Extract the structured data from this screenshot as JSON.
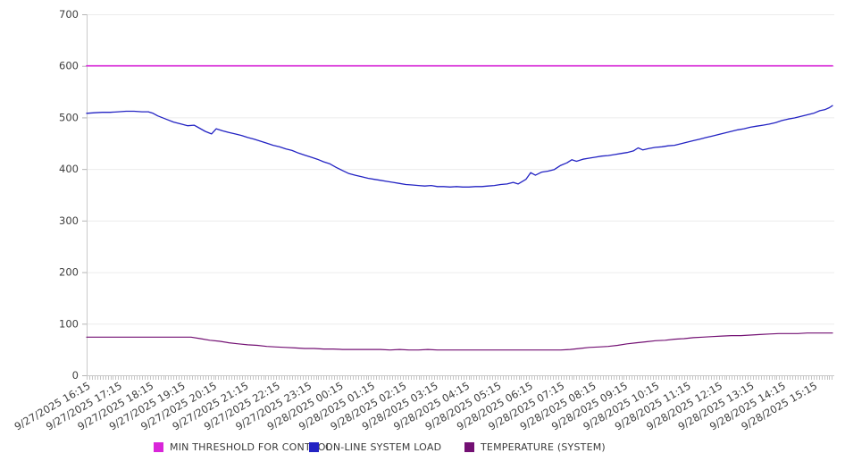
{
  "chart_data": {
    "type": "line",
    "title": "",
    "xlabel": "",
    "ylabel": "",
    "ylim": [
      0,
      700
    ],
    "y_ticks": [
      0,
      100,
      200,
      300,
      400,
      500,
      600,
      700
    ],
    "grid": "horizontal",
    "legend_position": "bottom-center",
    "x_hours_span": 23.6,
    "minor_tick_minutes": 5,
    "x_tick_labels": [
      "9/27/2025 16:15",
      "9/27/2025 17:15",
      "9/27/2025 18:15",
      "9/27/2025 19:15",
      "9/27/2025 20:15",
      "9/27/2025 21:15",
      "9/27/2025 22:15",
      "9/27/2025 23:15",
      "9/28/2025 00:15",
      "9/28/2025 01:15",
      "9/28/2025 02:15",
      "9/28/2025 03:15",
      "9/28/2025 04:15",
      "9/28/2025 05:15",
      "9/28/2025 06:15",
      "9/28/2025 07:15",
      "9/28/2025 08:15",
      "9/28/2025 09:15",
      "9/28/2025 10:15",
      "9/28/2025 11:15",
      "9/28/2025 12:15",
      "9/28/2025 13:15",
      "9/28/2025 14:15",
      "9/28/2025 15:15"
    ],
    "series": [
      {
        "name": "MIN THRESHOLD FOR CONTROL",
        "color": "#D926D9",
        "width": 1.7,
        "points": [
          [
            0,
            600
          ],
          [
            23.6,
            600
          ]
        ]
      },
      {
        "name": "ON-LINE SYSTEM LOAD",
        "color": "#2323C3",
        "width": 1.3,
        "points": [
          [
            0,
            508
          ],
          [
            0.25,
            509
          ],
          [
            0.5,
            510
          ],
          [
            0.75,
            510
          ],
          [
            1,
            511
          ],
          [
            1.25,
            512
          ],
          [
            1.5,
            512
          ],
          [
            1.75,
            511
          ],
          [
            1.95,
            511
          ],
          [
            2.1,
            508
          ],
          [
            2.25,
            503
          ],
          [
            2.5,
            497
          ],
          [
            2.75,
            491
          ],
          [
            3,
            487
          ],
          [
            3.2,
            484
          ],
          [
            3.4,
            485
          ],
          [
            3.55,
            480
          ],
          [
            3.75,
            473
          ],
          [
            3.95,
            468
          ],
          [
            4.1,
            478
          ],
          [
            4.3,
            474
          ],
          [
            4.5,
            471
          ],
          [
            4.7,
            468
          ],
          [
            4.9,
            465
          ],
          [
            5.1,
            461
          ],
          [
            5.3,
            458
          ],
          [
            5.5,
            454
          ],
          [
            5.7,
            450
          ],
          [
            5.9,
            446
          ],
          [
            6.1,
            443
          ],
          [
            6.3,
            439
          ],
          [
            6.5,
            436
          ],
          [
            6.7,
            431
          ],
          [
            6.9,
            427
          ],
          [
            7.1,
            423
          ],
          [
            7.3,
            419
          ],
          [
            7.5,
            414
          ],
          [
            7.7,
            410
          ],
          [
            7.9,
            403
          ],
          [
            8.1,
            397
          ],
          [
            8.3,
            391
          ],
          [
            8.5,
            388
          ],
          [
            8.7,
            385
          ],
          [
            8.9,
            382
          ],
          [
            9.1,
            380
          ],
          [
            9.3,
            378
          ],
          [
            9.5,
            376
          ],
          [
            9.7,
            374
          ],
          [
            9.9,
            372
          ],
          [
            10.1,
            370
          ],
          [
            10.3,
            369
          ],
          [
            10.5,
            368
          ],
          [
            10.7,
            367
          ],
          [
            10.9,
            368
          ],
          [
            11.1,
            366
          ],
          [
            11.3,
            366
          ],
          [
            11.5,
            365
          ],
          [
            11.7,
            366
          ],
          [
            11.9,
            365
          ],
          [
            12.1,
            365
          ],
          [
            12.3,
            366
          ],
          [
            12.5,
            366
          ],
          [
            12.7,
            367
          ],
          [
            12.9,
            368
          ],
          [
            13.1,
            370
          ],
          [
            13.3,
            371
          ],
          [
            13.5,
            374
          ],
          [
            13.65,
            371
          ],
          [
            13.9,
            380
          ],
          [
            14.05,
            393
          ],
          [
            14.2,
            388
          ],
          [
            14.4,
            394
          ],
          [
            14.6,
            396
          ],
          [
            14.8,
            399
          ],
          [
            15,
            407
          ],
          [
            15.2,
            412
          ],
          [
            15.35,
            418
          ],
          [
            15.5,
            415
          ],
          [
            15.7,
            419
          ],
          [
            15.9,
            421
          ],
          [
            16.1,
            423
          ],
          [
            16.3,
            425
          ],
          [
            16.5,
            426
          ],
          [
            16.7,
            428
          ],
          [
            16.9,
            430
          ],
          [
            17.1,
            432
          ],
          [
            17.3,
            435
          ],
          [
            17.45,
            441
          ],
          [
            17.6,
            437
          ],
          [
            17.8,
            440
          ],
          [
            18,
            442
          ],
          [
            18.2,
            443
          ],
          [
            18.4,
            445
          ],
          [
            18.6,
            446
          ],
          [
            18.8,
            449
          ],
          [
            19,
            452
          ],
          [
            19.2,
            455
          ],
          [
            19.4,
            458
          ],
          [
            19.6,
            461
          ],
          [
            19.8,
            464
          ],
          [
            20,
            467
          ],
          [
            20.2,
            470
          ],
          [
            20.4,
            473
          ],
          [
            20.6,
            476
          ],
          [
            20.8,
            478
          ],
          [
            21,
            481
          ],
          [
            21.2,
            483
          ],
          [
            21.4,
            485
          ],
          [
            21.6,
            487
          ],
          [
            21.8,
            490
          ],
          [
            22,
            494
          ],
          [
            22.2,
            497
          ],
          [
            22.4,
            499
          ],
          [
            22.6,
            502
          ],
          [
            22.8,
            505
          ],
          [
            23,
            508
          ],
          [
            23.2,
            513
          ],
          [
            23.35,
            515
          ],
          [
            23.5,
            519
          ],
          [
            23.6,
            523
          ]
        ]
      },
      {
        "name": "TEMPERATURE (SYSTEM)",
        "color": "#731073",
        "width": 1.2,
        "points": [
          [
            0,
            74
          ],
          [
            0.5,
            74
          ],
          [
            1,
            74
          ],
          [
            1.5,
            74
          ],
          [
            2,
            74
          ],
          [
            2.5,
            74
          ],
          [
            3,
            74
          ],
          [
            3.3,
            74
          ],
          [
            3.6,
            71
          ],
          [
            3.9,
            68
          ],
          [
            4.2,
            66
          ],
          [
            4.5,
            63
          ],
          [
            4.8,
            61
          ],
          [
            5.1,
            59
          ],
          [
            5.4,
            58
          ],
          [
            5.7,
            56
          ],
          [
            6,
            55
          ],
          [
            6.3,
            54
          ],
          [
            6.6,
            53
          ],
          [
            6.9,
            52
          ],
          [
            7.2,
            52
          ],
          [
            7.5,
            51
          ],
          [
            7.8,
            51
          ],
          [
            8.1,
            50
          ],
          [
            8.4,
            50
          ],
          [
            8.7,
            50
          ],
          [
            9,
            50
          ],
          [
            9.3,
            50
          ],
          [
            9.6,
            49
          ],
          [
            9.9,
            50
          ],
          [
            10.2,
            49
          ],
          [
            10.5,
            49
          ],
          [
            10.8,
            50
          ],
          [
            11.1,
            49
          ],
          [
            11.4,
            49
          ],
          [
            11.7,
            49
          ],
          [
            12,
            49
          ],
          [
            12.3,
            49
          ],
          [
            12.6,
            49
          ],
          [
            12.9,
            49
          ],
          [
            13.2,
            49
          ],
          [
            13.5,
            49
          ],
          [
            13.8,
            49
          ],
          [
            14.1,
            49
          ],
          [
            14.4,
            49
          ],
          [
            14.7,
            49
          ],
          [
            15,
            49
          ],
          [
            15.3,
            50
          ],
          [
            15.6,
            52
          ],
          [
            15.9,
            54
          ],
          [
            16.2,
            55
          ],
          [
            16.5,
            56
          ],
          [
            16.8,
            58
          ],
          [
            17.1,
            61
          ],
          [
            17.4,
            63
          ],
          [
            17.7,
            65
          ],
          [
            18,
            67
          ],
          [
            18.3,
            68
          ],
          [
            18.6,
            70
          ],
          [
            18.9,
            71
          ],
          [
            19.2,
            73
          ],
          [
            19.5,
            74
          ],
          [
            19.8,
            75
          ],
          [
            20.1,
            76
          ],
          [
            20.4,
            77
          ],
          [
            20.7,
            77
          ],
          [
            21,
            78
          ],
          [
            21.3,
            79
          ],
          [
            21.6,
            80
          ],
          [
            21.9,
            81
          ],
          [
            22.2,
            81
          ],
          [
            22.5,
            81
          ],
          [
            22.8,
            82
          ],
          [
            23.1,
            82
          ],
          [
            23.4,
            82
          ],
          [
            23.6,
            82
          ]
        ]
      }
    ],
    "colors": {
      "gridline": "#ececec",
      "axis": "#c9c9c9",
      "minor_tick": "#c6c6c6",
      "y_tick": "#b5b5b5",
      "tick_text": "#3f3f3f"
    }
  }
}
